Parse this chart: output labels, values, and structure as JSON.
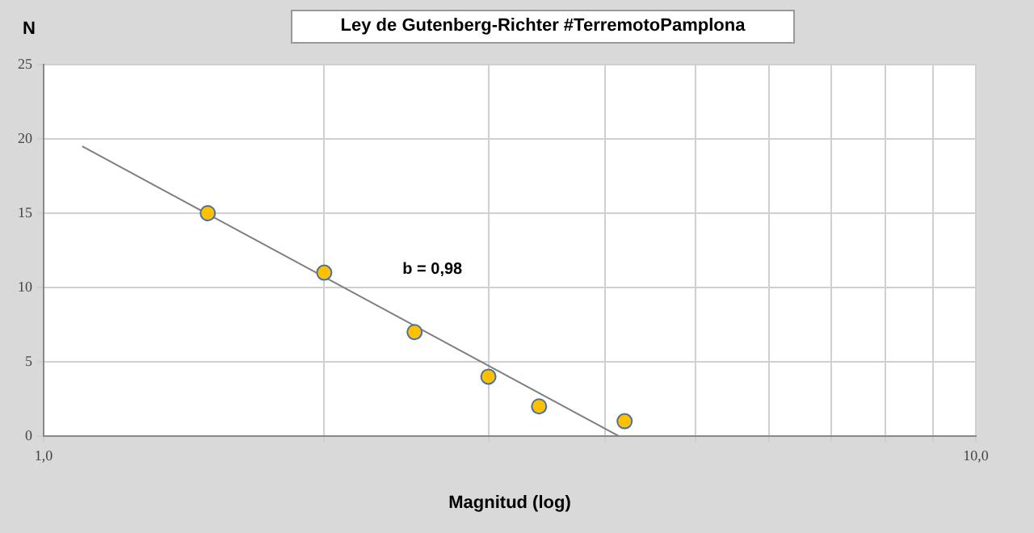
{
  "chart_data": {
    "type": "scatter",
    "title": "Ley de Gutenberg-Richter #TerremotoPamplona",
    "xlabel": "Magnitud (log)",
    "ylabel": "N",
    "series": [
      {
        "type": "scatter",
        "color": "#ffc000",
        "marker": "circle",
        "x": [
          1.5,
          2.0,
          2.5,
          3.0,
          3.4,
          4.2
        ],
        "values": [
          15,
          11,
          7,
          4,
          2,
          1
        ]
      },
      {
        "type": "line",
        "color": "#7f7f7f",
        "marker": "none",
        "x": [
          1.1,
          4.14
        ],
        "values": [
          19.5,
          0
        ]
      }
    ],
    "log": "x",
    "xlim": [
      1,
      10
    ],
    "ylim": [
      0,
      25
    ],
    "xticks": [
      {
        "value": 1,
        "label": "1,0"
      },
      {
        "value": 2,
        "label": null
      },
      {
        "value": 3,
        "label": null
      },
      {
        "value": 4,
        "label": null
      },
      {
        "value": 5,
        "label": null
      },
      {
        "value": 6,
        "label": null
      },
      {
        "value": 7,
        "label": null
      },
      {
        "value": 8,
        "label": null
      },
      {
        "value": 9,
        "label": null
      },
      {
        "value": 10,
        "label": "10,0"
      }
    ],
    "yticks": [
      0,
      5,
      10,
      15,
      20,
      25
    ],
    "annotations": [
      "b = 0,98"
    ],
    "grid": true,
    "legend": false
  }
}
